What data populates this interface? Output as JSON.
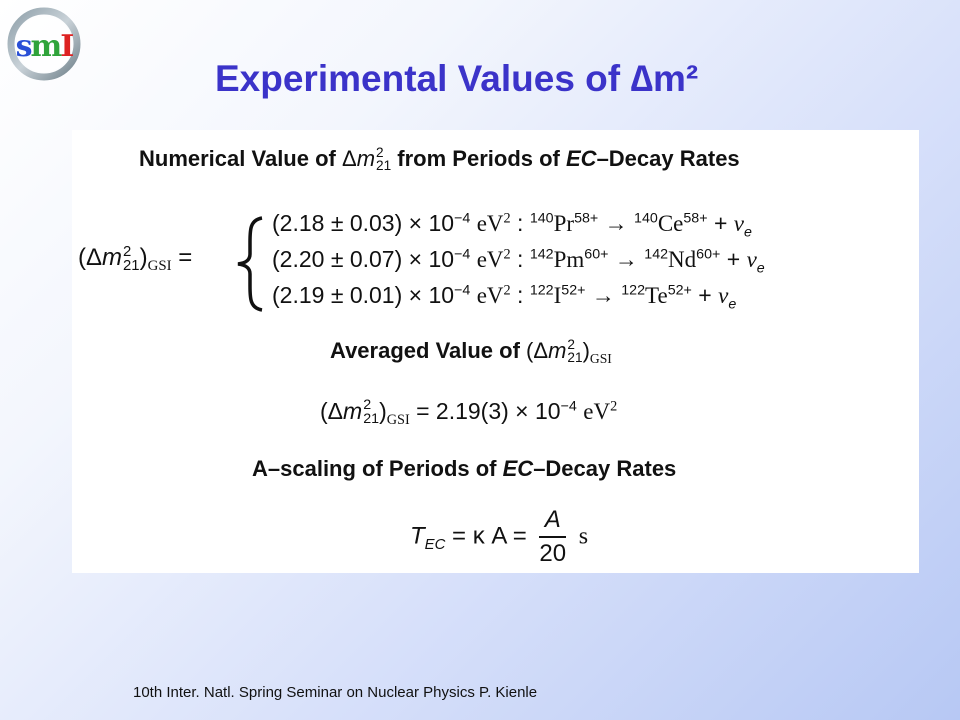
{
  "slide": {
    "title": "Experimental Values of ∆m²",
    "logo_text": "SMI",
    "footer": "10th Inter. Natl. Spring Seminar on Nuclear Physics   P. Kienle"
  },
  "panel": {
    "heading1": {
      "pre": "Numerical Value of",
      "post": "from Periods of",
      "ec": "EC",
      "rest": "–Decay Rates"
    },
    "lhs": {
      "gsi": "GSI"
    },
    "equations": [
      {
        "value": "(2.18 ± 0.03)",
        "unit": "× 10",
        "exp": "−4",
        "ev": "eV",
        "mother_a": "140",
        "mother": "Pr",
        "mother_q": "58+",
        "daughter_a": "140",
        "daughter": "Ce",
        "daughter_q": "58+"
      },
      {
        "value": "(2.20 ± 0.07)",
        "unit": "× 10",
        "exp": "−4",
        "ev": "eV",
        "mother_a": "142",
        "mother": "Pm",
        "mother_q": "60+",
        "daughter_a": "142",
        "daughter": "Nd",
        "daughter_q": "60+"
      },
      {
        "value": "(2.19 ± 0.01)",
        "unit": "× 10",
        "exp": "−4",
        "ev": "eV",
        "mother_a": "122",
        "mother": "I",
        "mother_q": "52+",
        "daughter_a": "122",
        "daughter": "Te",
        "daughter_q": "52+"
      }
    ],
    "heading2": {
      "text": "Averaged Value of"
    },
    "average": {
      "value": "= 2.19(3) × 10",
      "exp": "−4",
      "ev": "eV"
    },
    "heading3": {
      "pre": "A–scaling of Periods of",
      "ec": "EC",
      "rest": "–Decay Rates"
    },
    "formula": {
      "lhs": "T",
      "sub": "EC",
      "kappa": "= κ A =",
      "num": "A",
      "den": "20",
      "unit": "s"
    }
  }
}
